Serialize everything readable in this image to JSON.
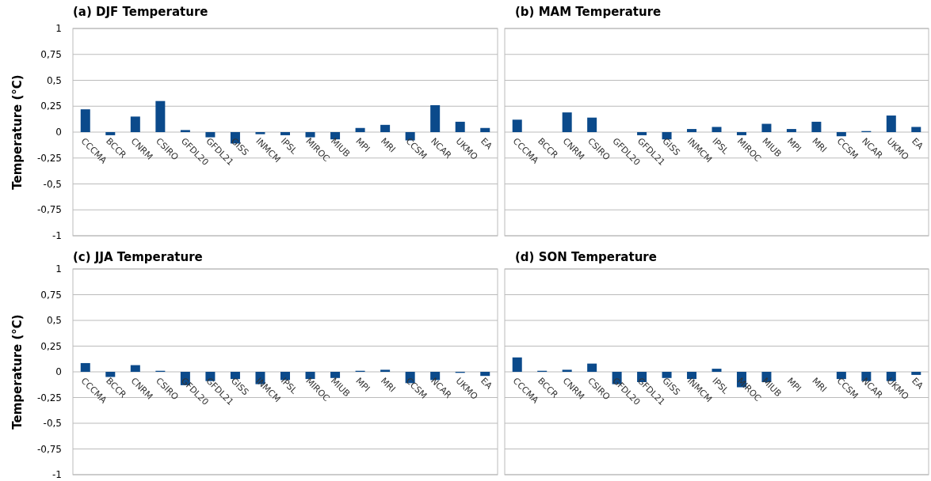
{
  "chart_data": [
    {
      "type": "bar",
      "title": "(a) DJF Temperature",
      "ylabel": "Temperature (°C)",
      "categories": [
        "CCCMA",
        "BCCR",
        "CNRM",
        "CSIRO",
        "GFDL20",
        "GFDL21",
        "GISS",
        "INMCM",
        "IPSL",
        "MIROC",
        "MIUB",
        "MPI",
        "MRI",
        "CCSM",
        "NCAR",
        "UKMO",
        "EA"
      ],
      "series": [
        {
          "color": "#0b4a8b",
          "values": [
            0.22,
            -0.03,
            0.15,
            0.3,
            0.02,
            -0.05,
            -0.11,
            -0.02,
            -0.03,
            -0.05,
            -0.07,
            0.04,
            0.07,
            -0.08,
            0.26,
            0.1,
            0.04
          ]
        }
      ],
      "ylim": [
        -1,
        1
      ],
      "yticks": [
        {
          "value": -1,
          "label": "-1"
        },
        {
          "value": -0.75,
          "label": "-0,75"
        },
        {
          "value": -0.5,
          "label": "-0,5"
        },
        {
          "value": -0.25,
          "label": "-0,25"
        },
        {
          "value": 0,
          "label": "0"
        },
        {
          "value": 0.25,
          "label": "0,25"
        },
        {
          "value": 0.5,
          "label": "0,5"
        },
        {
          "value": 0.75,
          "label": "0,75"
        },
        {
          "value": 1,
          "label": "1"
        }
      ],
      "grid": "y"
    },
    {
      "type": "bar",
      "title": "(b) MAM Temperature",
      "categories": [
        "CCCMA",
        "BCCR",
        "CNRM",
        "CSIRO",
        "GFDL20",
        "GFDL21",
        "GISS",
        "INMCM",
        "IPSL",
        "MIROC",
        "MIUB",
        "MPI",
        "MRI",
        "CCSM",
        "NCAR",
        "UKMO",
        "EA"
      ],
      "series": [
        {
          "color": "#0b4a8b",
          "values": [
            0.12,
            0,
            0.19,
            0.14,
            0,
            -0.03,
            -0.07,
            0.03,
            0.05,
            -0.03,
            0.08,
            0.03,
            0.1,
            -0.04,
            0.01,
            0.16,
            0.05
          ]
        }
      ],
      "ylim": [
        -1,
        1
      ],
      "yticks": [
        {
          "value": -1,
          "label": null
        },
        {
          "value": -0.75,
          "label": null
        },
        {
          "value": -0.5,
          "label": null
        },
        {
          "value": -0.25,
          "label": null
        },
        {
          "value": 0,
          "label": null
        },
        {
          "value": 0.25,
          "label": null
        },
        {
          "value": 0.5,
          "label": null
        },
        {
          "value": 0.75,
          "label": null
        },
        {
          "value": 1,
          "label": null
        }
      ],
      "grid": "y",
      "tick_labels": "x"
    },
    {
      "type": "bar",
      "title": "(c) JJA Temperature",
      "ylabel": "Temperature (°C)",
      "categories": [
        "CCCMA",
        "BCCR",
        "CNRM",
        "CSIRO",
        "GFDL20",
        "GFDL21",
        "GISS",
        "INMCM",
        "IPSL",
        "MIROC",
        "MIUB",
        "MPI",
        "MRI",
        "CCSM",
        "NCAR",
        "UKMO",
        "EA"
      ],
      "series": [
        {
          "color": "#0b4a8b",
          "values": [
            0.085,
            -0.05,
            0.065,
            0.01,
            -0.13,
            -0.09,
            -0.07,
            -0.12,
            -0.08,
            -0.07,
            -0.06,
            0.01,
            0.02,
            -0.11,
            -0.08,
            -0.01,
            -0.04
          ]
        }
      ],
      "ylim": [
        -1,
        1
      ],
      "yticks": [
        {
          "value": -1,
          "label": "-1"
        },
        {
          "value": -0.75,
          "label": "-0,75"
        },
        {
          "value": -0.5,
          "label": "-0,5"
        },
        {
          "value": -0.25,
          "label": "-0,25"
        },
        {
          "value": 0,
          "label": "0"
        },
        {
          "value": 0.25,
          "label": "0,25"
        },
        {
          "value": 0.5,
          "label": "0,5"
        },
        {
          "value": 0.75,
          "label": "0,75"
        },
        {
          "value": 1,
          "label": "1"
        }
      ],
      "grid": "y"
    },
    {
      "type": "bar",
      "title": "(d) SON Temperature",
      "categories": [
        "CCCMA",
        "BCCR",
        "CNRM",
        "CSIRO",
        "GFDL20",
        "GFDL21",
        "GISS",
        "INMCM",
        "IPSL",
        "MIROC",
        "MIUB",
        "MPI",
        "MRI",
        "CCSM",
        "NCAR",
        "UKMO",
        "EA"
      ],
      "series": [
        {
          "color": "#0b4a8b",
          "values": [
            0.14,
            0.01,
            0.02,
            0.08,
            -0.12,
            -0.1,
            -0.06,
            -0.07,
            0.03,
            -0.15,
            -0.1,
            0,
            0,
            -0.07,
            -0.09,
            -0.09,
            -0.03
          ]
        }
      ],
      "ylim": [
        -1,
        1
      ],
      "yticks": [
        {
          "value": -1,
          "label": null
        },
        {
          "value": -0.75,
          "label": null
        },
        {
          "value": -0.5,
          "label": null
        },
        {
          "value": -0.25,
          "label": null
        },
        {
          "value": 0,
          "label": null
        },
        {
          "value": 0.25,
          "label": null
        },
        {
          "value": 0.5,
          "label": null
        },
        {
          "value": 0.75,
          "label": null
        },
        {
          "value": 1,
          "label": null
        }
      ],
      "grid": "y",
      "tick_labels": "x"
    }
  ]
}
